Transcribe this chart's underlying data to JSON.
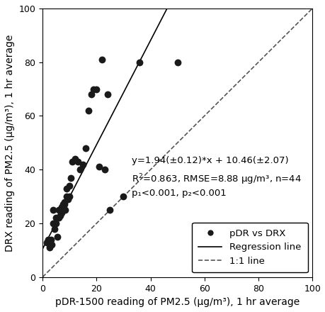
{
  "x_data": [
    1.5,
    2,
    2.5,
    3,
    3.5,
    4,
    4,
    4.5,
    5,
    5,
    5.5,
    6,
    6,
    6.5,
    7,
    7,
    7.5,
    8,
    8,
    8.5,
    9,
    9,
    9.5,
    10,
    10,
    10.5,
    11,
    12,
    13,
    14,
    15,
    16,
    17,
    18,
    19,
    20,
    21,
    22,
    23,
    24,
    25,
    30,
    36,
    50
  ],
  "y_data": [
    13,
    14,
    11,
    14,
    12,
    20,
    25,
    18,
    20,
    22,
    15,
    22,
    25,
    23,
    24,
    26,
    27,
    27,
    28,
    25,
    30,
    33,
    29,
    30,
    34,
    37,
    43,
    44,
    43,
    40,
    42,
    48,
    62,
    68,
    70,
    70,
    41,
    81,
    40,
    68,
    25,
    30,
    80,
    80
  ],
  "beta1": 1.94,
  "beta1_se": 0.12,
  "beta0": 10.46,
  "beta0_se": 2.07,
  "r2": 0.863,
  "rmse": 8.88,
  "n": 44,
  "xlim": [
    0,
    100
  ],
  "ylim": [
    0,
    100
  ],
  "xlabel": "pDR-1500 reading of PM2.5 (μg/m³), 1 hr average",
  "ylabel": "DRX reading of PM2.5 (μg/m³), 1 hr average",
  "annotation_line1": "y=1.94(±0.12)*x + 10.46(±2.07)",
  "annotation_line2_prefix": "R",
  "annotation_line2_rest": "=0.863, RMSE=8.88 μg/m³, n=44",
  "annotation_line3": "p₁<0.001, p₂<0.001",
  "dot_color": "#1a1a1a",
  "dot_size": 50,
  "regression_color": "#000000",
  "oneto1_color": "#555555",
  "background_color": "#ffffff",
  "tick_fontsize": 9,
  "label_fontsize": 10,
  "annotation_fontsize": 9.5,
  "legend_fontsize": 9.5,
  "xticks": [
    0,
    20,
    40,
    60,
    80,
    100
  ],
  "yticks": [
    0,
    20,
    40,
    60,
    80,
    100
  ]
}
